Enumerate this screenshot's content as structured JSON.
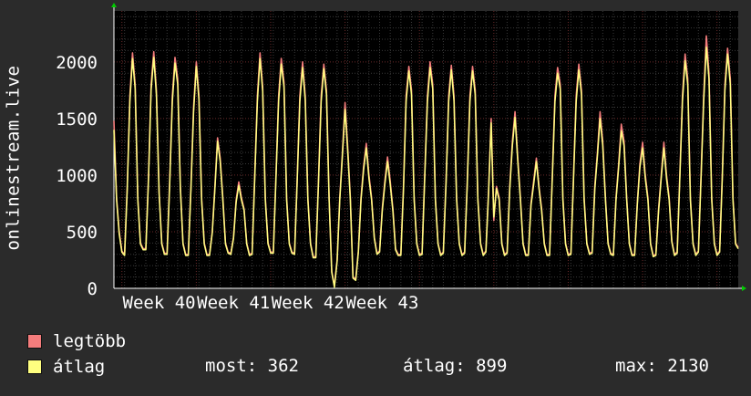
{
  "chart_data": {
    "type": "line",
    "ylabel": "onlinestream.live",
    "ylim": [
      0,
      2450
    ],
    "y_ticks": [
      0,
      500,
      1000,
      1500,
      2000
    ],
    "x_tick_labels": [
      "Week 40",
      "Week 41",
      "Week 42",
      "Week 43"
    ],
    "grid": true,
    "x_step_days": 0.25,
    "series": [
      {
        "name": "legtöbb",
        "color": "#f47c7c",
        "values": [
          1480,
          800,
          500,
          330,
          300,
          900,
          1700,
          2080,
          1800,
          800,
          400,
          350,
          350,
          980,
          1800,
          2090,
          1750,
          850,
          400,
          310,
          310,
          950,
          1700,
          2040,
          1850,
          900,
          400,
          300,
          300,
          900,
          1600,
          2000,
          1700,
          800,
          400,
          300,
          300,
          500,
          900,
          1330,
          1150,
          800,
          400,
          320,
          310,
          450,
          780,
          940,
          800,
          700,
          400,
          300,
          310,
          1000,
          1700,
          2080,
          1780,
          800,
          400,
          320,
          320,
          1000,
          1700,
          2030,
          1820,
          800,
          400,
          320,
          310,
          980,
          1700,
          2000,
          1700,
          800,
          400,
          280,
          280,
          950,
          1700,
          1980,
          1750,
          800,
          150,
          20,
          250,
          800,
          1200,
          1640,
          1250,
          800,
          100,
          80,
          330,
          800,
          1080,
          1280,
          1000,
          800,
          450,
          310,
          330,
          700,
          950,
          1160,
          950,
          700,
          350,
          300,
          300,
          900,
          1700,
          1960,
          1750,
          800,
          400,
          300,
          310,
          1000,
          1700,
          2000,
          1800,
          800,
          400,
          300,
          320,
          950,
          1700,
          1970,
          1700,
          800,
          400,
          300,
          320,
          950,
          1700,
          1960,
          1750,
          800,
          400,
          300,
          330,
          850,
          1500,
          600,
          900,
          800,
          400,
          300,
          320,
          900,
          1300,
          1560,
          1150,
          800,
          400,
          300,
          300,
          750,
          950,
          1150,
          900,
          700,
          400,
          300,
          300,
          1000,
          1700,
          1950,
          1800,
          800,
          400,
          300,
          310,
          1000,
          1700,
          1980,
          1750,
          800,
          400,
          310,
          320,
          900,
          1200,
          1560,
          1300,
          800,
          400,
          310,
          300,
          800,
          1100,
          1450,
          1300,
          800,
          400,
          300,
          300,
          750,
          1100,
          1290,
          1000,
          800,
          400,
          290,
          300,
          700,
          1000,
          1290,
          1000,
          800,
          420,
          300,
          320,
          1000,
          1700,
          2070,
          1850,
          800,
          400,
          300,
          330,
          1000,
          1700,
          2230,
          1900,
          800,
          400,
          300,
          330,
          1000,
          1800,
          2120,
          1850,
          800,
          400,
          360
        ]
      },
      {
        "name": "átlag",
        "color": "#ffff80",
        "values": [
          1400,
          780,
          480,
          320,
          290,
          870,
          1650,
          2030,
          1760,
          780,
          390,
          340,
          340,
          950,
          1750,
          2040,
          1710,
          830,
          390,
          300,
          300,
          920,
          1650,
          1990,
          1800,
          880,
          390,
          290,
          290,
          870,
          1560,
          1960,
          1660,
          780,
          390,
          290,
          290,
          490,
          880,
          1300,
          1120,
          780,
          390,
          310,
          300,
          440,
          760,
          910,
          780,
          690,
          390,
          290,
          300,
          970,
          1650,
          2030,
          1740,
          780,
          390,
          310,
          310,
          970,
          1650,
          1980,
          1780,
          780,
          390,
          310,
          300,
          950,
          1650,
          1950,
          1660,
          780,
          390,
          270,
          270,
          920,
          1650,
          1940,
          1710,
          780,
          140,
          10,
          240,
          780,
          1170,
          1580,
          1210,
          780,
          90,
          70,
          320,
          780,
          1050,
          1240,
          970,
          780,
          440,
          300,
          320,
          680,
          920,
          1120,
          920,
          680,
          340,
          290,
          290,
          870,
          1650,
          1920,
          1710,
          780,
          390,
          290,
          300,
          970,
          1650,
          1950,
          1760,
          780,
          390,
          290,
          310,
          920,
          1650,
          1930,
          1660,
          780,
          390,
          290,
          310,
          920,
          1650,
          1920,
          1710,
          780,
          390,
          290,
          320,
          830,
          1460,
          630,
          880,
          780,
          390,
          290,
          310,
          870,
          1260,
          1510,
          1120,
          780,
          390,
          290,
          290,
          730,
          920,
          1120,
          880,
          680,
          390,
          290,
          290,
          970,
          1650,
          1900,
          1760,
          780,
          390,
          290,
          300,
          970,
          1650,
          1930,
          1710,
          780,
          390,
          300,
          310,
          870,
          1170,
          1500,
          1260,
          780,
          390,
          300,
          290,
          780,
          1070,
          1390,
          1260,
          780,
          390,
          290,
          290,
          730,
          1070,
          1240,
          970,
          780,
          390,
          280,
          290,
          680,
          970,
          1240,
          970,
          780,
          410,
          290,
          310,
          970,
          1650,
          2010,
          1800,
          780,
          390,
          290,
          320,
          970,
          1650,
          2130,
          1850,
          780,
          390,
          290,
          320,
          970,
          1750,
          2070,
          1800,
          780,
          390,
          350
        ]
      }
    ]
  },
  "legend": {
    "max_label": "legtöbb",
    "avg_label": "átlag",
    "max_color": "#f47c7c",
    "avg_color": "#ffff80"
  },
  "stats": {
    "current": "most: 362",
    "average": "átlag: 899",
    "maximum": "max: 2130"
  }
}
